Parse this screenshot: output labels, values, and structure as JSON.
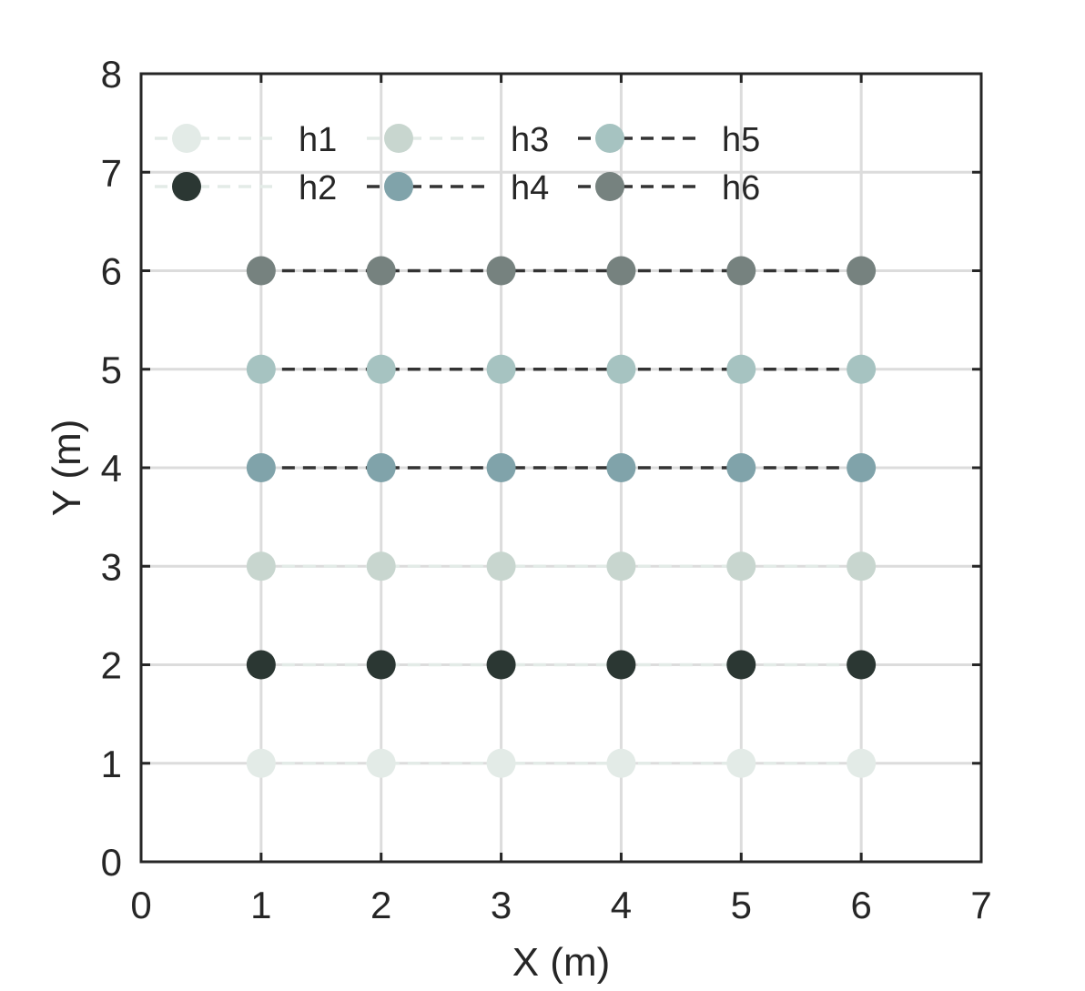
{
  "chart_data": {
    "type": "scatter",
    "title": "",
    "xlabel": "X (m)",
    "ylabel": "Y (m)",
    "xlim": [
      0,
      7
    ],
    "ylim": [
      0,
      8
    ],
    "xticks": [
      0,
      1,
      2,
      3,
      4,
      5,
      6,
      7
    ],
    "yticks": [
      0,
      1,
      2,
      3,
      4,
      5,
      6,
      7,
      8
    ],
    "grid": true,
    "legend": {
      "position": "top-left",
      "columns": 3
    },
    "series": [
      {
        "name": "h1",
        "color": "#e3ebe7",
        "line_color": "#e3ebe7",
        "line_style": "dashed",
        "x": [
          1,
          2,
          3,
          4,
          5,
          6
        ],
        "y": [
          1,
          1,
          1,
          1,
          1,
          1
        ]
      },
      {
        "name": "h2",
        "color": "#2b3733",
        "line_color": "#e3ebe7",
        "line_style": "dashed",
        "x": [
          1,
          2,
          3,
          4,
          5,
          6
        ],
        "y": [
          2,
          2,
          2,
          2,
          2,
          2
        ]
      },
      {
        "name": "h3",
        "color": "#c8d6cf",
        "line_color": "#e3ebe7",
        "line_style": "dashed",
        "x": [
          1,
          2,
          3,
          4,
          5,
          6
        ],
        "y": [
          3,
          3,
          3,
          3,
          3,
          3
        ]
      },
      {
        "name": "h4",
        "color": "#80a3aa",
        "line_color": "#333333",
        "line_style": "dashed",
        "x": [
          1,
          2,
          3,
          4,
          5,
          6
        ],
        "y": [
          4,
          4,
          4,
          4,
          4,
          4
        ]
      },
      {
        "name": "h5",
        "color": "#a6c3c1",
        "line_color": "#333333",
        "line_style": "dashed",
        "x": [
          1,
          2,
          3,
          4,
          5,
          6
        ],
        "y": [
          5,
          5,
          5,
          5,
          5,
          5
        ]
      },
      {
        "name": "h6",
        "color": "#76827f",
        "line_color": "#333333",
        "line_style": "dashed",
        "x": [
          1,
          2,
          3,
          4,
          5,
          6
        ],
        "y": [
          6,
          6,
          6,
          6,
          6,
          6
        ]
      }
    ]
  }
}
